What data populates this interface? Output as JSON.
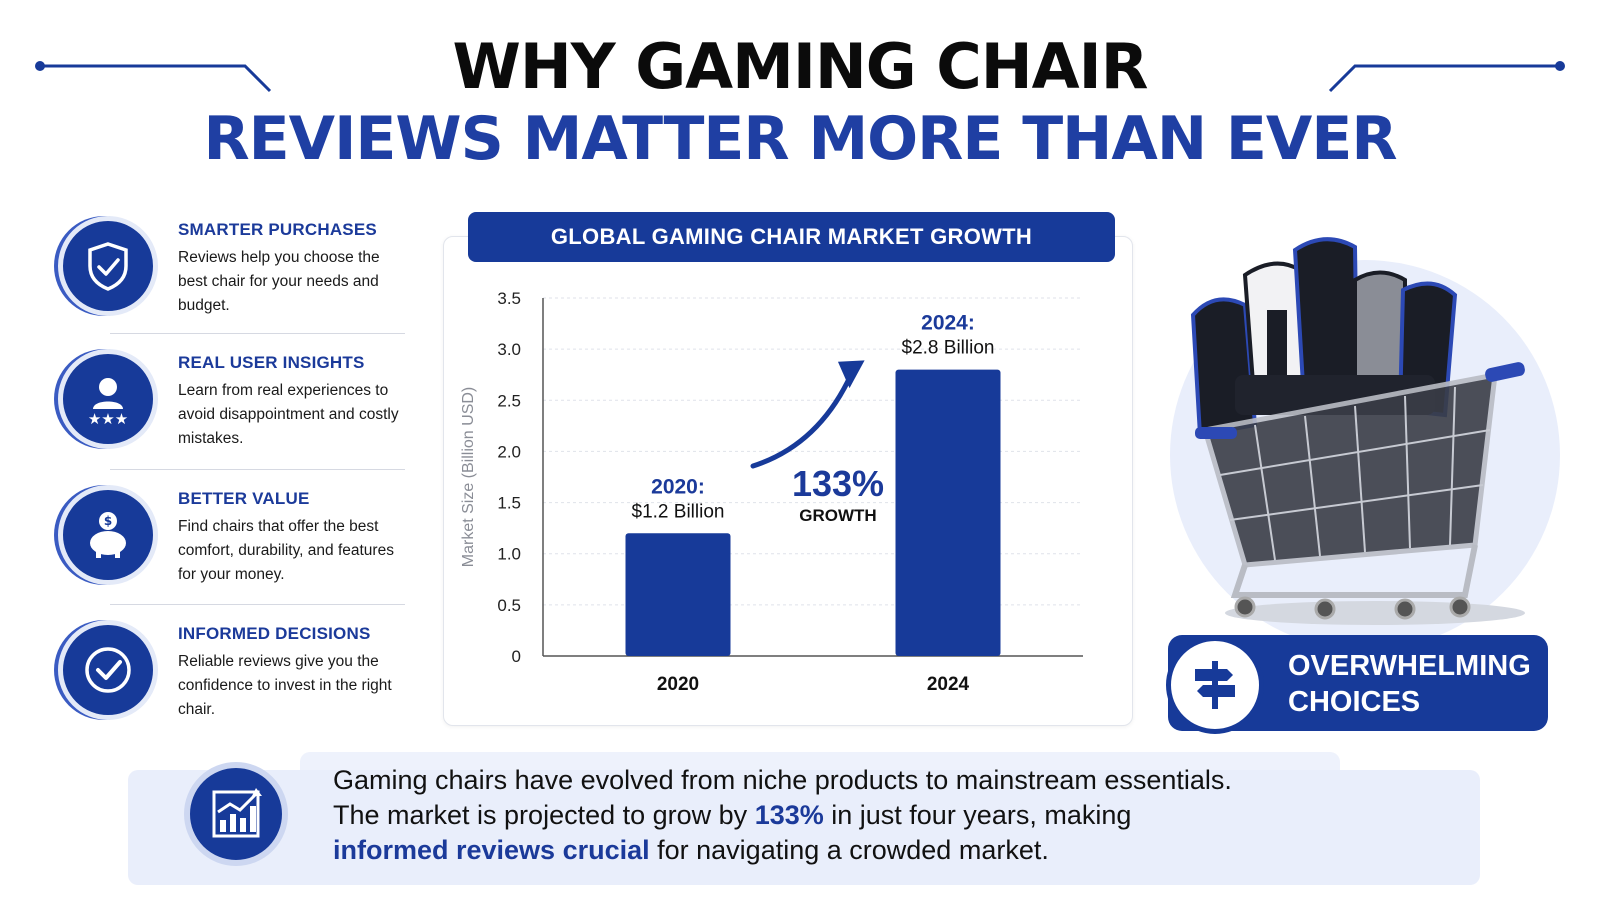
{
  "header": {
    "title_line1": "WHY GAMING CHAIR",
    "title_line2": "REVIEWS MATTER MORE THAN EVER"
  },
  "benefits": [
    {
      "icon": "shield-check-icon",
      "heading": "SMARTER PURCHASES",
      "description": "Reviews help you choose the best chair for your needs and budget."
    },
    {
      "icon": "user-stars-icon",
      "heading": "REAL USER INSIGHTS",
      "description": "Learn from real experiences to avoid disappointment and costly mistakes."
    },
    {
      "icon": "piggy-bank-icon",
      "heading": "BETTER VALUE",
      "description": "Find chairs that offer the best comfort, durability, and features for your money."
    },
    {
      "icon": "check-circle-icon",
      "heading": "INFORMED DECISIONS",
      "description": "Reliable reviews give you the confidence to invest in the right chair."
    }
  ],
  "chart_data": {
    "type": "bar",
    "title": "GLOBAL GAMING CHAIR MARKET GROWTH",
    "categories": [
      "2020",
      "2024"
    ],
    "values": [
      1.2,
      2.8
    ],
    "ylabel": "Market Size (Billion USD)",
    "xlabel": "",
    "ylim": [
      0,
      3.5
    ],
    "yticks": [
      "0",
      "0.5",
      "1.0",
      "1.5",
      "2.0",
      "2.5",
      "3.0",
      "3.5"
    ],
    "grid": true,
    "bar_color": "#173a99",
    "annotations": [
      {
        "year_label": "2020:",
        "value_label": "$1.2 Billion"
      },
      {
        "year_label": "2024:",
        "value_label": "$2.8 Billion"
      }
    ],
    "growth": {
      "percent": "133%",
      "label": "GROWTH"
    }
  },
  "side_panel": {
    "icon": "signpost-icon",
    "label_line1": "OVERWHELMING",
    "label_line2": "CHOICES"
  },
  "summary": {
    "icon": "growth-chart-icon",
    "line1": "Gaming chairs have evolved from niche products to mainstream essentials.",
    "line2_pre": "The market is projected to grow by ",
    "line2_highlight": "133%",
    "line2_post": " in just four years, making",
    "line3_highlight": "informed reviews crucial",
    "line3_post": " for navigating a crowded market."
  },
  "colors": {
    "primary": "#173a99",
    "accent_text": "#1b3a9a",
    "light_bg": "#e9eefb"
  }
}
